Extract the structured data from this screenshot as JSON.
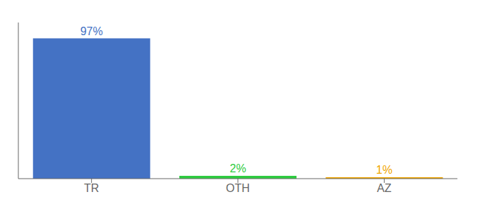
{
  "chart_data": {
    "type": "bar",
    "categories": [
      "TR",
      "OTH",
      "AZ"
    ],
    "values": [
      97,
      2,
      1
    ],
    "value_labels": [
      "97%",
      "2%",
      "1%"
    ],
    "colors": [
      "#4472c4",
      "#2ecc40",
      "#f0a500"
    ],
    "ylim": [
      0,
      108
    ],
    "data_labels": true,
    "tick_labels": "x",
    "grid": false
  }
}
